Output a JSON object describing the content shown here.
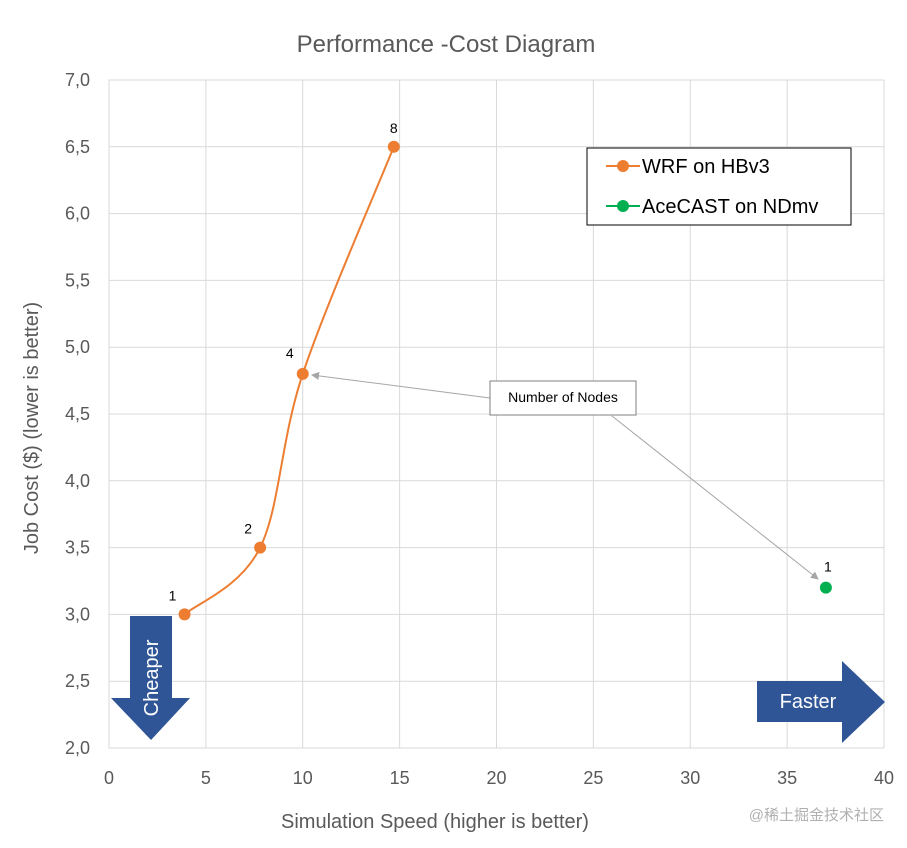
{
  "chart_data": {
    "type": "scatter",
    "title": "Performance -Cost Diagram",
    "xlabel": "Simulation Speed (higher is better)",
    "ylabel": "Job Cost ($) (lower is better)",
    "xlim": [
      0,
      40
    ],
    "ylim": [
      2.0,
      7.0
    ],
    "x_ticks": [
      "0",
      "5",
      "10",
      "15",
      "20",
      "25",
      "30",
      "35",
      "40"
    ],
    "y_ticks": [
      "2,0",
      "2,5",
      "3,0",
      "3,5",
      "4,0",
      "4,5",
      "5,0",
      "5,5",
      "6,0",
      "6,5",
      "7,0"
    ],
    "grid": true,
    "legend_position": "top-right",
    "series": [
      {
        "name": "WRF on HBv3",
        "color": "#ED7D31",
        "style": "smooth-line-with-markers",
        "points": [
          {
            "x": 3.9,
            "y": 3.0,
            "label": "1"
          },
          {
            "x": 7.8,
            "y": 3.5,
            "label": "2"
          },
          {
            "x": 10.0,
            "y": 4.8,
            "label": "4"
          },
          {
            "x": 14.7,
            "y": 6.5,
            "label": "8"
          }
        ]
      },
      {
        "name": "AceCAST on NDmv",
        "color": "#00B050",
        "style": "markers",
        "points": [
          {
            "x": 37.0,
            "y": 3.2,
            "label": "1"
          }
        ]
      }
    ],
    "annotations": {
      "callout": "Number of Nodes",
      "cheaper_arrow": "Cheaper",
      "faster_arrow": "Faster",
      "arrow_color": "#2F5597"
    }
  },
  "watermark": "@稀土掘金技术社区"
}
